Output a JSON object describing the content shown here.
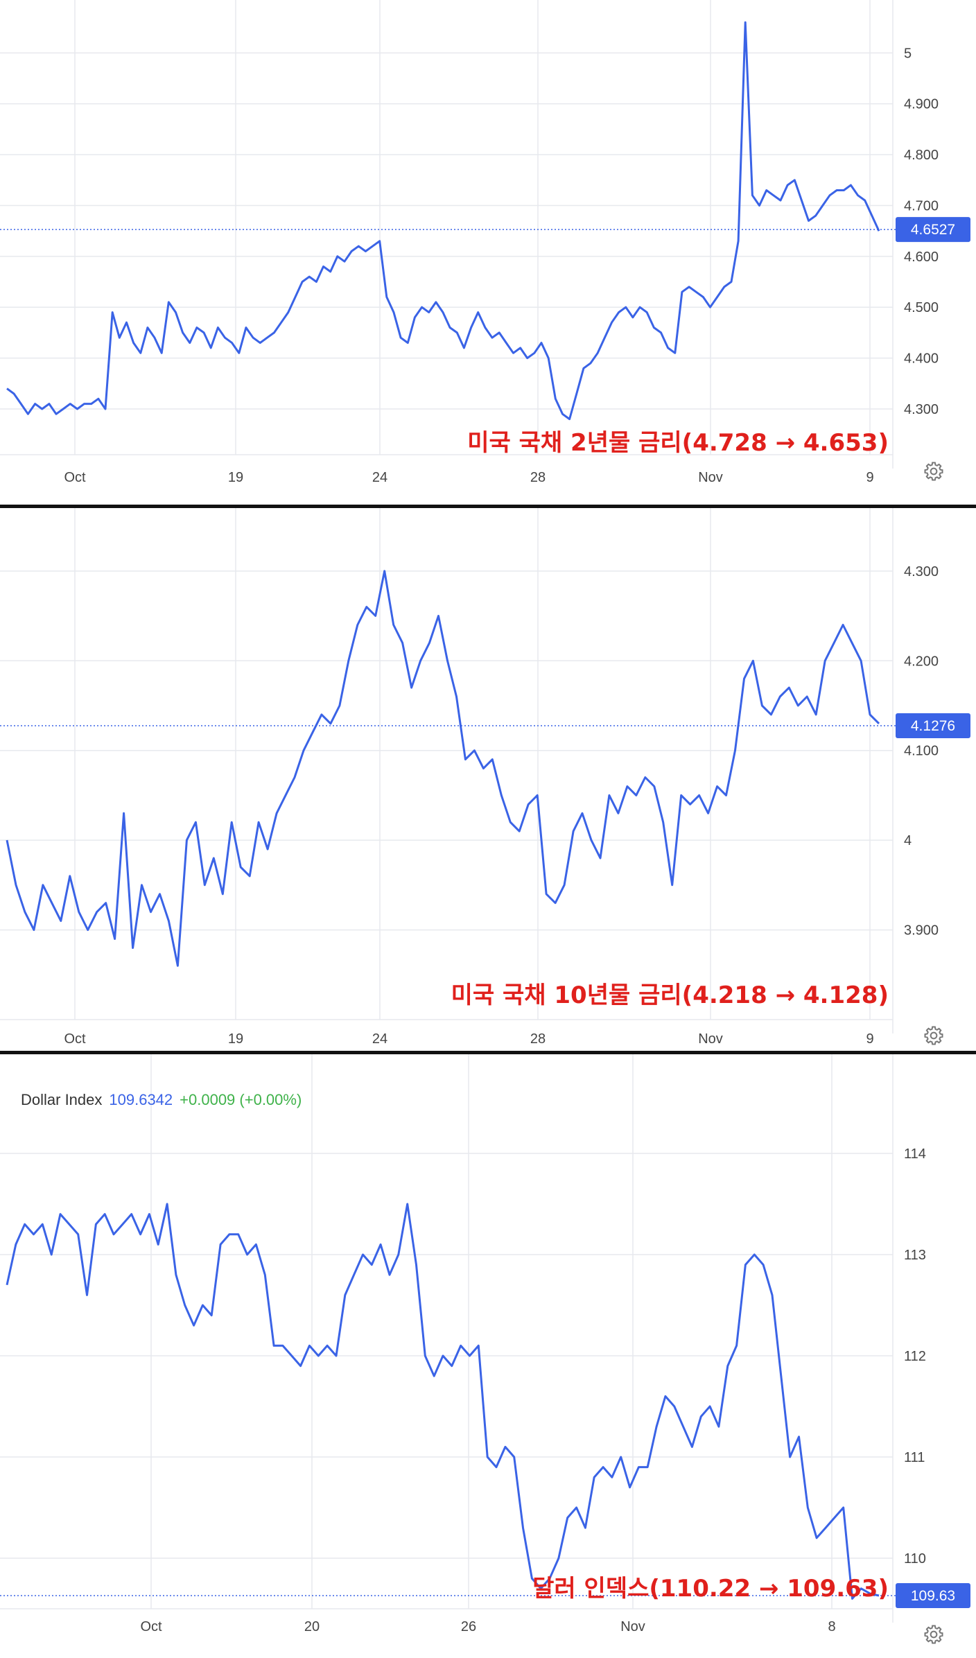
{
  "colors": {
    "line": "#3a63e6",
    "grid": "#e7e9ee",
    "last_price": "#3a63e6",
    "caption": "#e0201c",
    "legend_value": "#3a63e6",
    "legend_change": "#3fb24a"
  },
  "icons": [
    "gear-icon"
  ],
  "chart_data": [
    {
      "type": "line",
      "title": "미국 국채 2년물 금리(4.728 → 4.653)",
      "x_ticks": [
        "Oct",
        "19",
        "24",
        "28",
        "Nov",
        "9"
      ],
      "y_ticks": [
        "5",
        "4.900",
        "4.800",
        "4.700",
        "4.600",
        "4.500",
        "4.400",
        "4.300"
      ],
      "ylim": [
        4.21,
        5.07
      ],
      "last_value": "4.6527",
      "grid": true,
      "series": [
        {
          "values": [
            4.34,
            4.33,
            4.31,
            4.29,
            4.31,
            4.3,
            4.31,
            4.29,
            4.3,
            4.31,
            4.3,
            4.31,
            4.31,
            4.32,
            4.3,
            4.49,
            4.44,
            4.47,
            4.43,
            4.41,
            4.46,
            4.44,
            4.41,
            4.51,
            4.49,
            4.45,
            4.43,
            4.46,
            4.45,
            4.42,
            4.46,
            4.44,
            4.43,
            4.41,
            4.46,
            4.44,
            4.43,
            4.44,
            4.45,
            4.47,
            4.49,
            4.52,
            4.55,
            4.56,
            4.55,
            4.58,
            4.57,
            4.6,
            4.59,
            4.61,
            4.62,
            4.61,
            4.62,
            4.63,
            4.52,
            4.49,
            4.44,
            4.43,
            4.48,
            4.5,
            4.49,
            4.51,
            4.49,
            4.46,
            4.45,
            4.42,
            4.46,
            4.49,
            4.46,
            4.44,
            4.45,
            4.43,
            4.41,
            4.42,
            4.4,
            4.41,
            4.43,
            4.4,
            4.32,
            4.29,
            4.28,
            4.33,
            4.38,
            4.39,
            4.41,
            4.44,
            4.47,
            4.49,
            4.5,
            4.48,
            4.5,
            4.49,
            4.46,
            4.45,
            4.42,
            4.41,
            4.53,
            4.54,
            4.53,
            4.52,
            4.5,
            4.52,
            4.54,
            4.55,
            4.63,
            5.06,
            4.72,
            4.7,
            4.73,
            4.72,
            4.71,
            4.74,
            4.75,
            4.71,
            4.67,
            4.68,
            4.7,
            4.72,
            4.73,
            4.73,
            4.74,
            4.72,
            4.71,
            4.68,
            4.65
          ]
        }
      ]
    },
    {
      "type": "line",
      "title": "미국 국채 10년물 금리(4.218 → 4.128)",
      "x_ticks": [
        "Oct",
        "19",
        "24",
        "28",
        "Nov",
        "9"
      ],
      "y_ticks": [
        "4.300",
        "4.200",
        "4.100",
        "4",
        "3.900"
      ],
      "ylim": [
        3.8,
        4.33
      ],
      "last_value": "4.1276",
      "grid": true,
      "series": [
        {
          "values": [
            4.0,
            3.95,
            3.92,
            3.9,
            3.95,
            3.93,
            3.91,
            3.96,
            3.92,
            3.9,
            3.92,
            3.93,
            3.89,
            4.03,
            3.88,
            3.95,
            3.92,
            3.94,
            3.91,
            3.86,
            4.0,
            4.02,
            3.95,
            3.98,
            3.94,
            4.02,
            3.97,
            3.96,
            4.02,
            3.99,
            4.03,
            4.05,
            4.07,
            4.1,
            4.12,
            4.14,
            4.13,
            4.15,
            4.2,
            4.24,
            4.26,
            4.25,
            4.3,
            4.24,
            4.22,
            4.17,
            4.2,
            4.22,
            4.25,
            4.2,
            4.16,
            4.09,
            4.1,
            4.08,
            4.09,
            4.05,
            4.02,
            4.01,
            4.04,
            4.05,
            3.94,
            3.93,
            3.95,
            4.01,
            4.03,
            4.0,
            3.98,
            4.05,
            4.03,
            4.06,
            4.05,
            4.07,
            4.06,
            4.02,
            3.95,
            4.05,
            4.04,
            4.05,
            4.03,
            4.06,
            4.05,
            4.1,
            4.18,
            4.2,
            4.15,
            4.14,
            4.16,
            4.17,
            4.15,
            4.16,
            4.14,
            4.2,
            4.22,
            4.24,
            4.22,
            4.2,
            4.14,
            4.13
          ]
        }
      ]
    },
    {
      "type": "line",
      "title": "달러 인덱스(110.22 → 109.63)",
      "legend_name": "Dollar Index",
      "legend_value": "109.6342",
      "legend_change": "+0.0009 (+0.00%)",
      "x_ticks": [
        "Oct",
        "20",
        "26",
        "Nov",
        "8"
      ],
      "y_ticks": [
        "114",
        "113",
        "112",
        "111",
        "110"
      ],
      "ylim": [
        109.5,
        114.5
      ],
      "last_value": "109.63",
      "grid": true,
      "series": [
        {
          "values": [
            112.7,
            113.1,
            113.3,
            113.2,
            113.3,
            113.0,
            113.4,
            113.3,
            113.2,
            112.6,
            113.3,
            113.4,
            113.2,
            113.3,
            113.4,
            113.2,
            113.4,
            113.1,
            113.5,
            112.8,
            112.5,
            112.3,
            112.5,
            112.4,
            113.1,
            113.2,
            113.2,
            113.0,
            113.1,
            112.8,
            112.1,
            112.1,
            112.0,
            111.9,
            112.1,
            112.0,
            112.1,
            112.0,
            112.6,
            112.8,
            113.0,
            112.9,
            113.1,
            112.8,
            113.0,
            113.5,
            112.9,
            112.0,
            111.8,
            112.0,
            111.9,
            112.1,
            112.0,
            112.1,
            111.0,
            110.9,
            111.1,
            111.0,
            110.3,
            109.8,
            109.7,
            109.8,
            110.0,
            110.4,
            110.5,
            110.3,
            110.8,
            110.9,
            110.8,
            111.0,
            110.7,
            110.9,
            110.9,
            111.3,
            111.6,
            111.5,
            111.3,
            111.1,
            111.4,
            111.5,
            111.3,
            111.9,
            112.1,
            112.9,
            113.0,
            112.9,
            112.6,
            111.8,
            111.0,
            111.2,
            110.5,
            110.2,
            110.3,
            110.4,
            110.5,
            109.6,
            109.7,
            109.65,
            109.63
          ]
        }
      ]
    }
  ]
}
